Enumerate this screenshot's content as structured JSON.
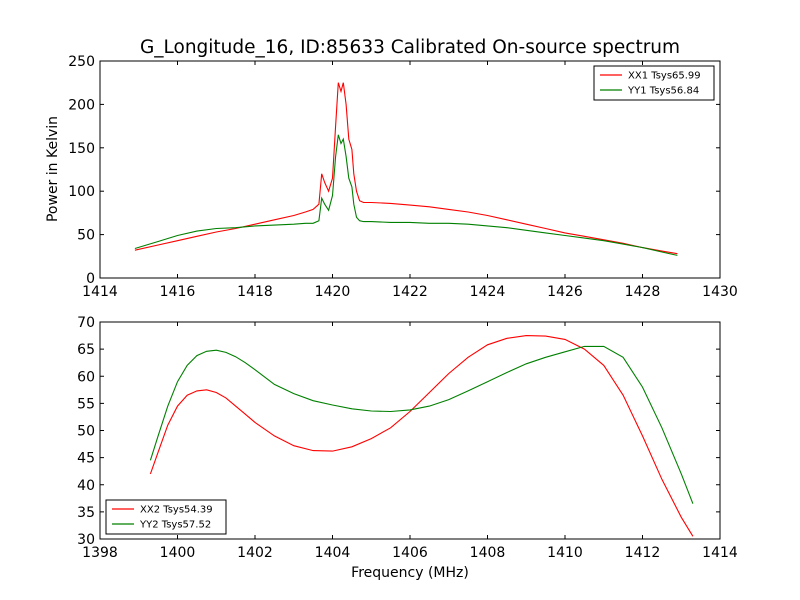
{
  "figure": {
    "title": "G_Longitude_16, ID:85633 Calibrated On-source spectrum",
    "xlabel": "Frequency (MHz)",
    "colors": {
      "red": "#ff0000",
      "green": "#008000"
    }
  },
  "chart_data": [
    {
      "type": "line",
      "title": "G_Longitude_16, ID:85633 Calibrated On-source spectrum",
      "xlabel": "",
      "ylabel": "Power in Kelvin",
      "xlim": [
        1414,
        1430
      ],
      "ylim": [
        0,
        250
      ],
      "xticks": [
        "1414",
        "1416",
        "1418",
        "1420",
        "1422",
        "1424",
        "1426",
        "1428",
        "1430"
      ],
      "yticks": [
        "0",
        "50",
        "100",
        "150",
        "200",
        "250"
      ],
      "legend_position": "top-right",
      "grid": false,
      "series": [
        {
          "name": "XX1 Tsys65.99",
          "color": "#ff0000",
          "x": [
            1414.9,
            1415.5,
            1416.0,
            1416.5,
            1417.0,
            1417.5,
            1418.0,
            1418.5,
            1419.0,
            1419.3,
            1419.5,
            1419.65,
            1419.72,
            1419.8,
            1419.9,
            1420.0,
            1420.08,
            1420.15,
            1420.22,
            1420.28,
            1420.35,
            1420.42,
            1420.5,
            1420.55,
            1420.62,
            1420.7,
            1420.8,
            1421.0,
            1421.5,
            1422.0,
            1422.5,
            1423.0,
            1423.5,
            1424.0,
            1424.5,
            1425.0,
            1425.5,
            1426.0,
            1426.5,
            1427.0,
            1427.5,
            1428.0,
            1428.5,
            1428.9
          ],
          "y": [
            32,
            38,
            43,
            48,
            53,
            57,
            62,
            67,
            72,
            76,
            79,
            85,
            120,
            110,
            100,
            115,
            175,
            225,
            215,
            225,
            200,
            160,
            148,
            120,
            100,
            89,
            87,
            87,
            86,
            84,
            82,
            79,
            76,
            72,
            67,
            62,
            57,
            52,
            48,
            44,
            40,
            35,
            31,
            28
          ]
        },
        {
          "name": "YY1 Tsys56.84",
          "color": "#008000",
          "x": [
            1414.9,
            1415.5,
            1416.0,
            1416.5,
            1417.0,
            1417.5,
            1418.0,
            1418.5,
            1419.0,
            1419.3,
            1419.5,
            1419.65,
            1419.72,
            1419.8,
            1419.9,
            1420.0,
            1420.08,
            1420.15,
            1420.22,
            1420.28,
            1420.35,
            1420.42,
            1420.5,
            1420.55,
            1420.62,
            1420.7,
            1420.8,
            1421.0,
            1421.5,
            1422.0,
            1422.5,
            1423.0,
            1423.5,
            1424.0,
            1424.5,
            1425.0,
            1425.5,
            1426.0,
            1426.5,
            1427.0,
            1427.5,
            1428.0,
            1428.5,
            1428.9
          ],
          "y": [
            34,
            42,
            49,
            54,
            57,
            58,
            60,
            61,
            62,
            63,
            63,
            66,
            92,
            85,
            78,
            95,
            140,
            165,
            155,
            160,
            140,
            115,
            105,
            85,
            70,
            66,
            65,
            65,
            64,
            64,
            63,
            63,
            62,
            60,
            58,
            55,
            52,
            49,
            46,
            43,
            39,
            35,
            30,
            26
          ]
        }
      ]
    },
    {
      "type": "line",
      "title": "",
      "xlabel": "Frequency (MHz)",
      "ylabel": "",
      "xlim": [
        1398,
        1414
      ],
      "ylim": [
        30,
        70
      ],
      "xticks": [
        "1398",
        "1400",
        "1402",
        "1404",
        "1406",
        "1408",
        "1410",
        "1412",
        "1414"
      ],
      "yticks": [
        "30",
        "35",
        "40",
        "45",
        "50",
        "55",
        "60",
        "65",
        "70"
      ],
      "legend_position": "lower-left",
      "grid": false,
      "series": [
        {
          "name": "XX2 Tsys54.39",
          "color": "#ff0000",
          "x": [
            1399.3,
            1399.5,
            1399.75,
            1400.0,
            1400.25,
            1400.5,
            1400.75,
            1401.0,
            1401.25,
            1401.5,
            1401.75,
            1402.0,
            1402.5,
            1403.0,
            1403.5,
            1404.0,
            1404.5,
            1405.0,
            1405.5,
            1406.0,
            1406.5,
            1407.0,
            1407.5,
            1408.0,
            1408.5,
            1409.0,
            1409.5,
            1410.0,
            1410.5,
            1411.0,
            1411.5,
            1412.0,
            1412.5,
            1413.0,
            1413.3
          ],
          "y": [
            42,
            46,
            51,
            54.5,
            56.5,
            57.3,
            57.5,
            57,
            56,
            54.5,
            53,
            51.5,
            49,
            47.2,
            46.3,
            46.2,
            47,
            48.5,
            50.5,
            53.5,
            57,
            60.5,
            63.5,
            65.8,
            67,
            67.5,
            67.4,
            66.8,
            65,
            62,
            56.5,
            49,
            41,
            34,
            30.5
          ]
        },
        {
          "name": "YY2 Tsys57.52",
          "color": "#008000",
          "x": [
            1399.3,
            1399.5,
            1399.75,
            1400.0,
            1400.25,
            1400.5,
            1400.75,
            1401.0,
            1401.25,
            1401.5,
            1401.75,
            1402.0,
            1402.5,
            1403.0,
            1403.5,
            1404.0,
            1404.5,
            1405.0,
            1405.5,
            1406.0,
            1406.5,
            1407.0,
            1407.5,
            1408.0,
            1408.5,
            1409.0,
            1409.5,
            1410.0,
            1410.5,
            1411.0,
            1411.5,
            1412.0,
            1412.5,
            1413.0,
            1413.3
          ],
          "y": [
            44.5,
            49,
            54.5,
            59,
            62,
            63.8,
            64.6,
            64.8,
            64.4,
            63.6,
            62.5,
            61.2,
            58.5,
            56.8,
            55.5,
            54.7,
            54,
            53.6,
            53.5,
            53.8,
            54.5,
            55.7,
            57.3,
            59,
            60.7,
            62.3,
            63.5,
            64.5,
            65.5,
            65.5,
            63.5,
            58,
            50.5,
            42,
            36.5
          ]
        }
      ]
    }
  ]
}
